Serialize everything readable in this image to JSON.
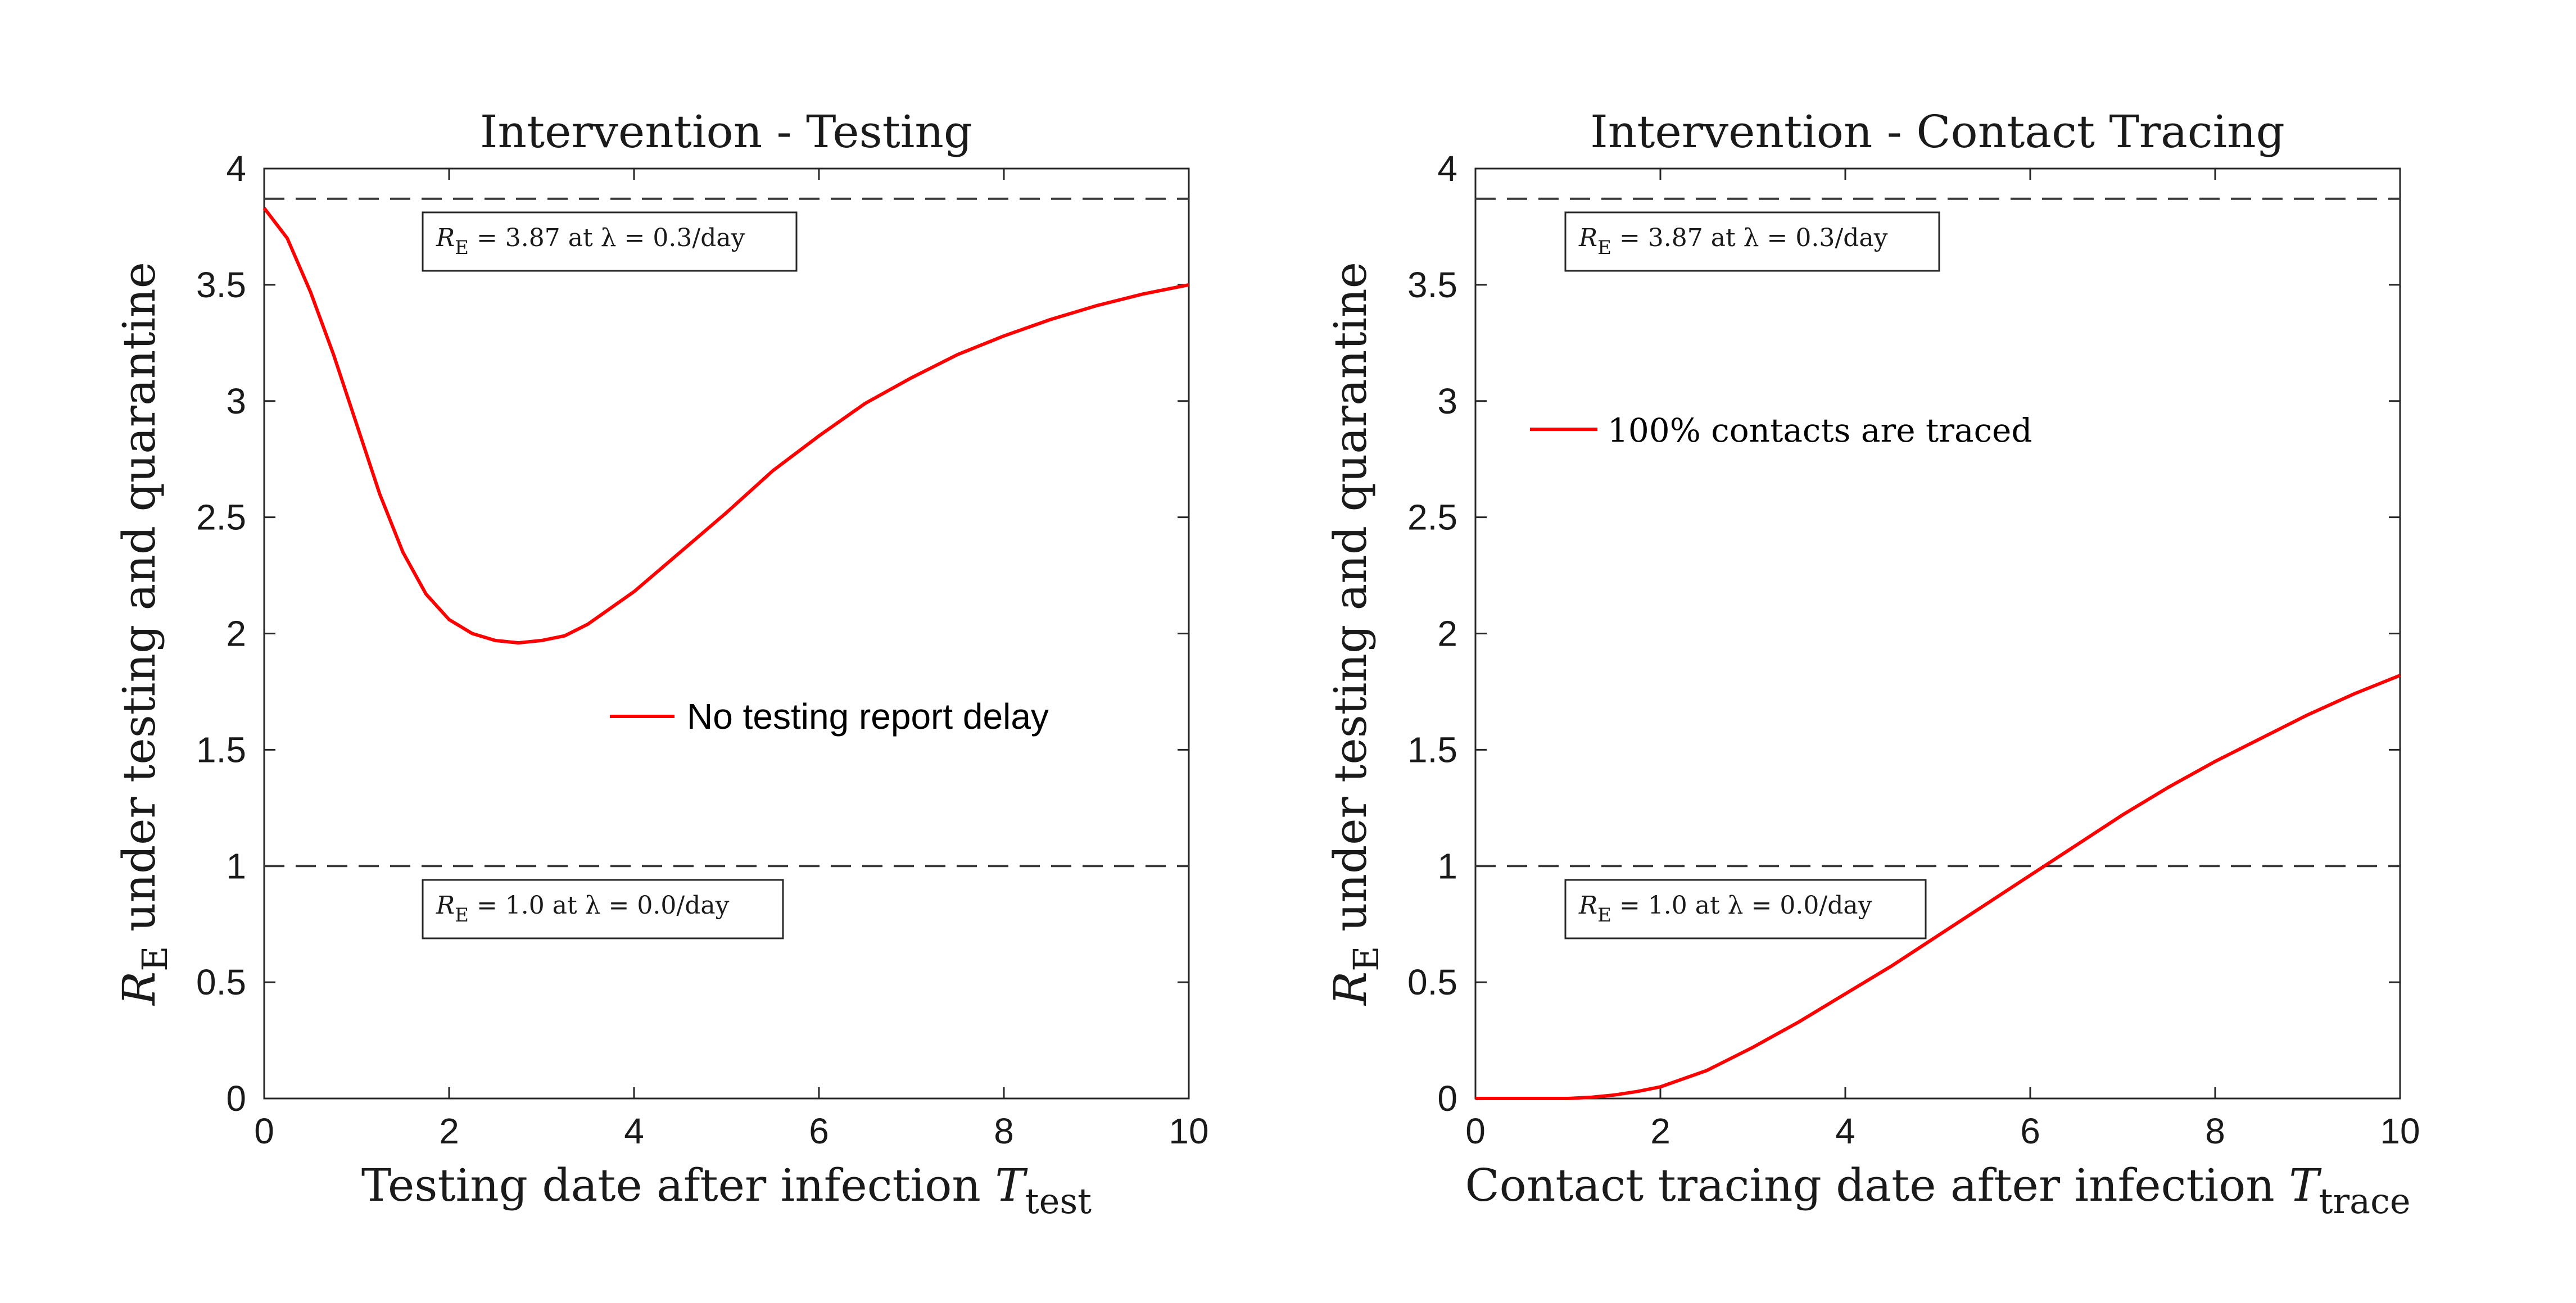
{
  "chart_data": [
    {
      "type": "line",
      "title": "Intervention - Testing",
      "xlabel": "Testing date after infection",
      "xlabel_symbol": "T",
      "xlabel_sub": "test",
      "ylabel_symbol": "R",
      "ylabel_sub": "E",
      "ylabel": " under testing and quarantine",
      "xlim": [
        0,
        10
      ],
      "ylim": [
        0,
        4
      ],
      "xticks": [
        0,
        2,
        4,
        6,
        8,
        10
      ],
      "yticks": [
        0,
        0.5,
        1,
        1.5,
        2,
        2.5,
        3,
        3.5,
        4
      ],
      "xtick_labels": [
        "0",
        "2",
        "4",
        "6",
        "8",
        "10"
      ],
      "ytick_labels": [
        "0",
        "0.5",
        "1",
        "1.5",
        "2",
        "2.5",
        "3",
        "3.5",
        "4"
      ],
      "reference_lines": [
        {
          "y": 3.87,
          "style": "dashed"
        },
        {
          "y": 1.0,
          "style": "dashed"
        }
      ],
      "annotations": [
        {
          "symbol": "R",
          "sub": "E",
          "text": " = 3.87 at λ = 0.3/day",
          "near_y": 3.87
        },
        {
          "symbol": "R",
          "sub": "E",
          "text": " = 1.0 at λ = 0.0/day",
          "near_y": 1.0
        }
      ],
      "legend": {
        "placement": "center-right",
        "entries": [
          "No testing report delay"
        ]
      },
      "series": [
        {
          "name": "No testing report delay",
          "color": "#ff0000",
          "x": [
            0,
            0.25,
            0.5,
            0.75,
            1.0,
            1.25,
            1.5,
            1.75,
            2.0,
            2.25,
            2.5,
            2.75,
            3.0,
            3.25,
            3.5,
            4.0,
            4.5,
            5.0,
            5.5,
            6.0,
            6.5,
            7.0,
            7.5,
            8.0,
            8.5,
            9.0,
            9.5,
            10.0
          ],
          "y": [
            3.83,
            3.7,
            3.47,
            3.2,
            2.9,
            2.6,
            2.35,
            2.17,
            2.06,
            2.0,
            1.97,
            1.96,
            1.97,
            1.99,
            2.04,
            2.18,
            2.35,
            2.52,
            2.7,
            2.85,
            2.99,
            3.1,
            3.2,
            3.28,
            3.35,
            3.41,
            3.46,
            3.5
          ]
        }
      ]
    },
    {
      "type": "line",
      "title": "Intervention - Contact Tracing",
      "xlabel": "Contact tracing date after infection",
      "xlabel_symbol": "T",
      "xlabel_sub": "trace",
      "ylabel_symbol": "R",
      "ylabel_sub": "E",
      "ylabel": " under testing and quarantine",
      "xlim": [
        0,
        10
      ],
      "ylim": [
        0,
        4
      ],
      "xticks": [
        0,
        2,
        4,
        6,
        8,
        10
      ],
      "yticks": [
        0,
        0.5,
        1,
        1.5,
        2,
        2.5,
        3,
        3.5,
        4
      ],
      "xtick_labels": [
        "0",
        "2",
        "4",
        "6",
        "8",
        "10"
      ],
      "ytick_labels": [
        "0",
        "0.5",
        "1",
        "1.5",
        "2",
        "2.5",
        "3",
        "3.5",
        "4"
      ],
      "reference_lines": [
        {
          "y": 3.87,
          "style": "dashed"
        },
        {
          "y": 1.0,
          "style": "dashed"
        }
      ],
      "annotations": [
        {
          "symbol": "R",
          "sub": "E",
          "text": " = 3.87 at λ = 0.3/day",
          "near_y": 3.87
        },
        {
          "symbol": "R",
          "sub": "E",
          "text": " = 1.0 at λ = 0.0/day",
          "near_y": 1.0
        }
      ],
      "legend": {
        "placement": "upper-left",
        "entries": [
          "100% contacts are traced"
        ]
      },
      "series": [
        {
          "name": "100% contacts are traced",
          "color": "#ff0000",
          "x": [
            0,
            0.5,
            1.0,
            1.25,
            1.5,
            1.75,
            2.0,
            2.5,
            3.0,
            3.5,
            4.0,
            4.5,
            5.0,
            5.5,
            6.0,
            6.5,
            7.0,
            7.5,
            8.0,
            8.5,
            9.0,
            9.5,
            10.0
          ],
          "y": [
            0.0,
            0.0,
            0.0,
            0.005,
            0.015,
            0.03,
            0.05,
            0.12,
            0.22,
            0.33,
            0.45,
            0.57,
            0.7,
            0.83,
            0.96,
            1.09,
            1.22,
            1.34,
            1.45,
            1.55,
            1.65,
            1.74,
            1.82
          ]
        }
      ]
    }
  ]
}
